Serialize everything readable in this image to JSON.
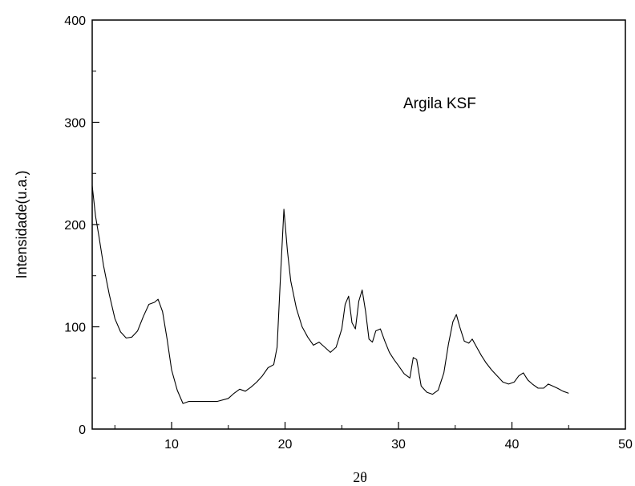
{
  "chart_data": {
    "type": "line",
    "title": "",
    "xlabel": "2θ",
    "ylabel": "Intensidade(u.a.)",
    "xlim": [
      3,
      50
    ],
    "ylim": [
      0,
      400
    ],
    "x_ticks": [
      10,
      20,
      30,
      40,
      50
    ],
    "y_ticks": [
      0,
      100,
      200,
      300,
      400
    ],
    "grid": false,
    "annotation": "Argila KSF",
    "series": [
      {
        "color": "#000000",
        "x": [
          3.0,
          3.3,
          3.6,
          4.0,
          4.5,
          5.0,
          5.5,
          6.0,
          6.5,
          7.0,
          7.5,
          8.0,
          8.5,
          8.8,
          9.2,
          9.6,
          10.0,
          10.5,
          11.0,
          11.5,
          12.0,
          13.0,
          14.0,
          15.0,
          15.5,
          16.0,
          16.5,
          17.0,
          17.5,
          18.0,
          18.5,
          19.0,
          19.3,
          19.6,
          19.9,
          20.2,
          20.5,
          21.0,
          21.5,
          22.0,
          22.5,
          23.0,
          23.5,
          24.0,
          24.5,
          25.0,
          25.3,
          25.6,
          25.9,
          26.2,
          26.5,
          26.8,
          27.1,
          27.4,
          27.7,
          28.0,
          28.4,
          28.8,
          29.2,
          29.6,
          30.0,
          30.5,
          31.0,
          31.3,
          31.6,
          32.0,
          32.5,
          33.0,
          33.5,
          34.0,
          34.4,
          34.8,
          35.1,
          35.4,
          35.8,
          36.2,
          36.5,
          36.9,
          37.3,
          37.7,
          38.2,
          38.7,
          39.2,
          39.7,
          40.2,
          40.6,
          41.0,
          41.4,
          41.8,
          42.3,
          42.8,
          43.2,
          43.6,
          44.0,
          44.5,
          45.0
        ],
        "y": [
          238,
          208,
          188,
          160,
          132,
          108,
          95,
          89,
          90,
          96,
          110,
          122,
          124,
          127,
          115,
          88,
          58,
          38,
          25,
          27,
          27,
          27,
          27,
          30,
          35,
          39,
          37,
          41,
          46,
          52,
          60,
          63,
          80,
          150,
          215,
          175,
          145,
          118,
          100,
          90,
          82,
          85,
          80,
          75,
          80,
          98,
          122,
          130,
          104,
          98,
          125,
          136,
          115,
          88,
          85,
          96,
          98,
          86,
          75,
          68,
          62,
          54,
          50,
          70,
          68,
          42,
          36,
          34,
          38,
          55,
          83,
          105,
          112,
          100,
          86,
          84,
          88,
          80,
          72,
          65,
          58,
          52,
          46,
          44,
          46,
          52,
          55,
          48,
          44,
          40,
          40,
          44,
          42,
          40,
          37,
          35
        ]
      }
    ]
  }
}
